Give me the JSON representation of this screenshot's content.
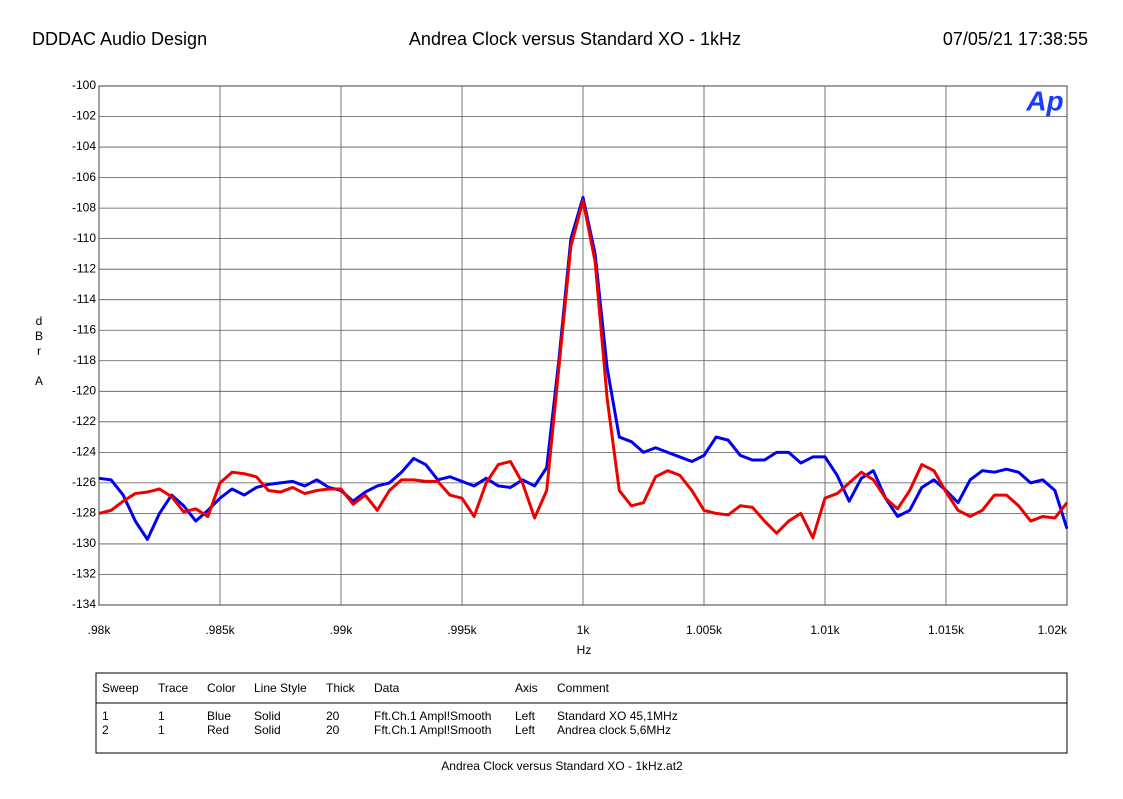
{
  "header": {
    "left": "DDDAC Audio Design",
    "date": "07/05/21 17:38:55",
    "logo": "Ap"
  },
  "chart_data": {
    "type": "line",
    "title": "Andrea Clock versus Standard XO - 1kHz",
    "xlabel": "Hz",
    "ylabel": "dBr A",
    "xlim": [
      980,
      1020
    ],
    "ylim": [
      -134,
      -100
    ],
    "xticks": [
      {
        "value": 980,
        "label": ".98k"
      },
      {
        "value": 985,
        "label": ".985k"
      },
      {
        "value": 990,
        "label": ".99k"
      },
      {
        "value": 995,
        "label": ".995k"
      },
      {
        "value": 1000,
        "label": "1k"
      },
      {
        "value": 1005,
        "label": "1.005k"
      },
      {
        "value": 1010,
        "label": "1.01k"
      },
      {
        "value": 1015,
        "label": "1.015k"
      },
      {
        "value": 1020,
        "label": "1.02k"
      }
    ],
    "yticks": [
      -134,
      -132,
      -130,
      -128,
      -126,
      -124,
      -122,
      -120,
      -118,
      -116,
      -114,
      -112,
      -110,
      -108,
      -106,
      -104,
      -102,
      -100
    ],
    "grid": true,
    "x": [
      980,
      980.5,
      981,
      981.5,
      982,
      982.5,
      983,
      983.5,
      984,
      984.5,
      985,
      985.5,
      986,
      986.5,
      987,
      987.5,
      988,
      988.5,
      989,
      989.5,
      990,
      990.5,
      991,
      991.5,
      992,
      992.5,
      993,
      993.5,
      994,
      994.5,
      995,
      995.5,
      996,
      996.5,
      997,
      997.5,
      998,
      998.5,
      999,
      999.5,
      1000,
      1000.5,
      1001,
      1001.5,
      1002,
      1002.5,
      1003,
      1003.5,
      1004,
      1004.5,
      1005,
      1005.5,
      1006,
      1006.5,
      1007,
      1007.5,
      1008,
      1008.5,
      1009,
      1009.5,
      1010,
      1010.5,
      1011,
      1011.5,
      1012,
      1012.5,
      1013,
      1013.5,
      1014,
      1014.5,
      1015,
      1015.5,
      1016,
      1016.5,
      1017,
      1017.5,
      1018,
      1018.5,
      1019,
      1019.5,
      1020
    ],
    "series": [
      {
        "color": "#0000ee",
        "values": [
          -125.7,
          -125.8,
          -126.8,
          -128.5,
          -129.7,
          -128,
          -126.8,
          -127.5,
          -128.5,
          -127.8,
          -127,
          -126.4,
          -126.8,
          -126.3,
          -126.1,
          -126,
          -125.9,
          -126.2,
          -125.8,
          -126.3,
          -126.5,
          -127.2,
          -126.6,
          -126.2,
          -126,
          -125.3,
          -124.4,
          -124.8,
          -125.8,
          -125.6,
          -125.9,
          -126.2,
          -125.7,
          -126.2,
          -126.3,
          -125.8,
          -126.2,
          -125,
          -118,
          -110,
          -107.3,
          -111,
          -118.5,
          -123,
          -123.3,
          -124,
          -123.7,
          -124,
          -124.3,
          -124.6,
          -124.2,
          -123,
          -123.2,
          -124.2,
          -124.5,
          -124.5,
          -124,
          -124,
          -124.7,
          -124.3,
          -124.3,
          -125.5,
          -127.2,
          -125.7,
          -125.2,
          -127,
          -128.2,
          -127.8,
          -126.3,
          -125.8,
          -126.5,
          -127.3,
          -125.8,
          -125.2,
          -125.3,
          -125.1,
          -125.3,
          -126,
          -125.8,
          -126.5,
          -129
        ]
      },
      {
        "color": "#ee0000",
        "values": [
          -128,
          -127.8,
          -127.2,
          -126.7,
          -126.6,
          -126.4,
          -126.9,
          -127.9,
          -127.7,
          -128.2,
          -126,
          -125.3,
          -125.4,
          -125.6,
          -126.5,
          -126.6,
          -126.3,
          -126.7,
          -126.5,
          -126.4,
          -126.4,
          -127.4,
          -126.8,
          -127.8,
          -126.5,
          -125.8,
          -125.8,
          -125.9,
          -125.9,
          -126.8,
          -127,
          -128.2,
          -126,
          -124.8,
          -124.6,
          -126,
          -128.3,
          -126.5,
          -118.5,
          -110.5,
          -107.5,
          -111.5,
          -120.5,
          -126.5,
          -127.5,
          -127.3,
          -125.6,
          -125.2,
          -125.5,
          -126.5,
          -127.8,
          -128,
          -128.1,
          -127.5,
          -127.6,
          -128.5,
          -129.3,
          -128.5,
          -128,
          -129.6,
          -127,
          -126.7,
          -126,
          -125.3,
          -125.8,
          -127,
          -127.7,
          -126.5,
          -124.8,
          -125.2,
          -126.6,
          -127.8,
          -128.2,
          -127.8,
          -126.8,
          -126.8,
          -127.5,
          -128.5,
          -128.2,
          -128.3,
          -127.3
        ]
      }
    ]
  },
  "legend": {
    "columns": [
      "Sweep",
      "Trace",
      "Color",
      "Line Style",
      "Thick",
      "Data",
      "Axis",
      "Comment"
    ],
    "rows": [
      [
        "1",
        "1",
        "Blue",
        "Solid",
        "20",
        "Fft.Ch.1 Ampl!Smooth",
        "Left",
        "Standard XO 45,1MHz"
      ],
      [
        "2",
        "1",
        "Red",
        "Solid",
        "20",
        "Fft.Ch.1 Ampl!Smooth",
        "Left",
        "Andrea clock 5,6MHz"
      ]
    ]
  },
  "footer": "Andrea Clock versus Standard XO - 1kHz.at2"
}
